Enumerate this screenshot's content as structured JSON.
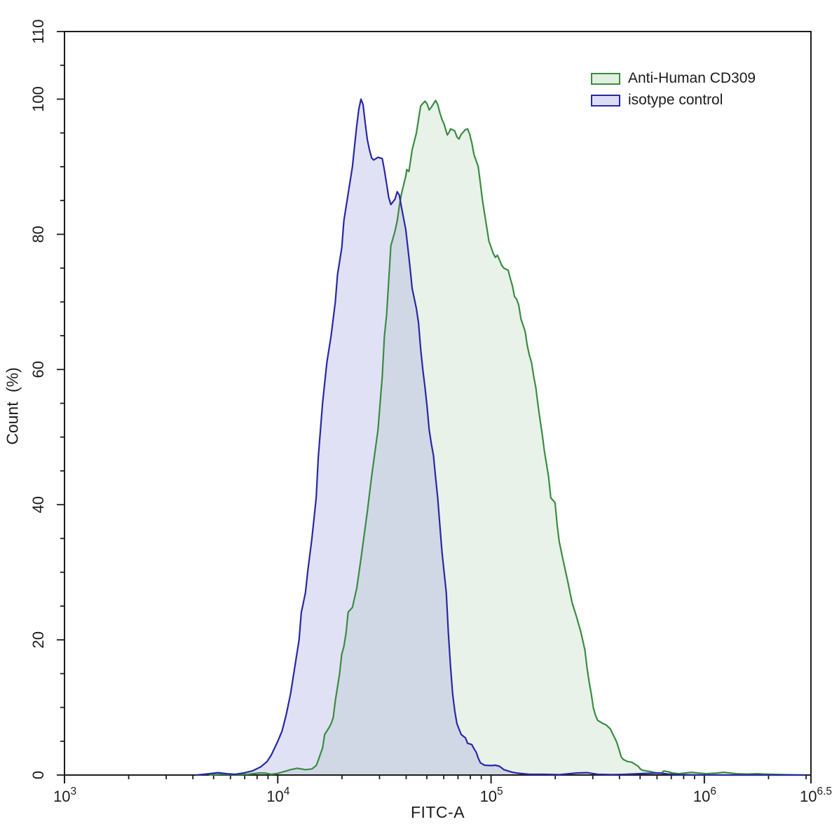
{
  "figure": {
    "xlabel": "FITC-A",
    "ylabel": "Count (%)",
    "legend": [
      {
        "label": "Anti-Human CD309"
      },
      {
        "label": "isotype control"
      }
    ]
  },
  "chart_data": {
    "type": "area",
    "subtype": "flow-cytometry-histogram",
    "title": "",
    "xlabel": "FITC-A",
    "ylabel": "Count (%)",
    "x_scale": "log10",
    "x_range_log10": [
      3,
      6.5
    ],
    "ylim": [
      0,
      110
    ],
    "grid": false,
    "legend_position": "top-right",
    "axis_color": "#1c1c1c",
    "text_color": "#1c1c1c",
    "x_tick_base": "10",
    "x_major_ticks": [
      {
        "log10": 3,
        "exponent": "3"
      },
      {
        "log10": 4,
        "exponent": "4"
      },
      {
        "log10": 5,
        "exponent": "5"
      },
      {
        "log10": 6,
        "exponent": "6"
      },
      {
        "log10": 6.5,
        "exponent": "6.5"
      }
    ],
    "y_major_ticks": [
      0,
      20,
      40,
      60,
      80,
      100,
      110
    ],
    "y_minor_step": 5,
    "series": [
      {
        "id": "anti-human-cd309",
        "name": "Anti-Human CD309",
        "color": "#3a8c42",
        "fill": "#7db980",
        "fill_opacity": 0.18,
        "swatch_fill": "#e0f0e0",
        "points": [
          [
            3.68,
            0
          ],
          [
            3.74,
            0.1
          ],
          [
            3.8,
            0.05
          ],
          [
            3.86,
            0.1
          ],
          [
            3.91,
            0.3
          ],
          [
            3.94,
            0.3
          ],
          [
            3.97,
            0.1
          ],
          [
            4.0,
            0.25
          ],
          [
            4.04,
            0.6
          ],
          [
            4.06,
            0.8
          ],
          [
            4.09,
            1.0
          ],
          [
            4.11,
            0.9
          ],
          [
            4.13,
            0.8
          ],
          [
            4.16,
            0.9
          ],
          [
            4.18,
            1.4
          ],
          [
            4.19,
            2.2
          ],
          [
            4.21,
            4.0
          ],
          [
            4.22,
            6.0
          ],
          [
            4.24,
            7.0
          ],
          [
            4.25,
            7.6
          ],
          [
            4.26,
            8.5
          ],
          [
            4.27,
            11
          ],
          [
            4.29,
            15
          ],
          [
            4.3,
            17.9
          ],
          [
            4.31,
            19
          ],
          [
            4.32,
            21
          ],
          [
            4.33,
            24.1
          ],
          [
            4.35,
            24.8
          ],
          [
            4.36,
            26.2
          ],
          [
            4.37,
            27.6
          ],
          [
            4.39,
            32
          ],
          [
            4.42,
            39
          ],
          [
            4.44,
            44.2
          ],
          [
            4.47,
            51.1
          ],
          [
            4.49,
            59
          ],
          [
            4.5,
            64.9
          ],
          [
            4.51,
            68
          ],
          [
            4.52,
            73
          ],
          [
            4.53,
            78.3
          ],
          [
            4.55,
            80.5
          ],
          [
            4.56,
            82
          ],
          [
            4.57,
            84.2
          ],
          [
            4.58,
            86
          ],
          [
            4.59,
            87.3
          ],
          [
            4.6,
            88.6
          ],
          [
            4.605,
            89.6
          ],
          [
            4.615,
            89.3
          ],
          [
            4.62,
            90.3
          ],
          [
            4.63,
            92.5
          ],
          [
            4.65,
            95
          ],
          [
            4.66,
            97
          ],
          [
            4.67,
            99
          ],
          [
            4.69,
            99.7
          ],
          [
            4.7,
            99.3
          ],
          [
            4.71,
            98.4
          ],
          [
            4.72,
            98.8
          ],
          [
            4.74,
            99.8
          ],
          [
            4.75,
            99.2
          ],
          [
            4.76,
            98
          ],
          [
            4.77,
            97
          ],
          [
            4.78,
            96.3
          ],
          [
            4.79,
            95.2
          ],
          [
            4.795,
            94.7
          ],
          [
            4.805,
            95.2
          ],
          [
            4.81,
            95.6
          ],
          [
            4.83,
            95.3
          ],
          [
            4.84,
            94.4
          ],
          [
            4.85,
            94.1
          ],
          [
            4.86,
            94.8
          ],
          [
            4.88,
            95.5
          ],
          [
            4.89,
            95.6
          ],
          [
            4.9,
            94.8
          ],
          [
            4.91,
            93.5
          ],
          [
            4.92,
            91.8
          ],
          [
            4.94,
            90
          ],
          [
            4.95,
            87.5
          ],
          [
            4.96,
            85
          ],
          [
            4.97,
            83
          ],
          [
            4.98,
            81
          ],
          [
            4.99,
            79
          ],
          [
            5.0,
            78.1
          ],
          [
            5.01,
            77.2
          ],
          [
            5.02,
            76.6
          ],
          [
            5.03,
            76.9
          ],
          [
            5.04,
            76.2
          ],
          [
            5.05,
            75.4
          ],
          [
            5.06,
            75.0
          ],
          [
            5.08,
            74.7
          ],
          [
            5.09,
            73.5
          ],
          [
            5.1,
            72.4
          ],
          [
            5.11,
            70.8
          ],
          [
            5.12,
            70.4
          ],
          [
            5.13,
            69.5
          ],
          [
            5.14,
            67.5
          ],
          [
            5.16,
            65.6
          ],
          [
            5.17,
            63.5
          ],
          [
            5.18,
            62.1
          ],
          [
            5.19,
            61.0
          ],
          [
            5.2,
            59
          ],
          [
            5.21,
            57.3
          ],
          [
            5.22,
            54.8
          ],
          [
            5.23,
            52.5
          ],
          [
            5.24,
            50.4
          ],
          [
            5.25,
            48.0
          ],
          [
            5.26,
            46
          ],
          [
            5.27,
            44.1
          ],
          [
            5.28,
            41.0
          ],
          [
            5.3,
            40.3
          ],
          [
            5.31,
            37
          ],
          [
            5.32,
            34.5
          ],
          [
            5.34,
            31.5
          ],
          [
            5.36,
            28.6
          ],
          [
            5.38,
            25.5
          ],
          [
            5.4,
            23.5
          ],
          [
            5.41,
            22.4
          ],
          [
            5.42,
            21.3
          ],
          [
            5.44,
            18.5
          ],
          [
            5.45,
            15.9
          ],
          [
            5.46,
            13.8
          ],
          [
            5.47,
            12.0
          ],
          [
            5.48,
            9.9
          ],
          [
            5.49,
            8.8
          ],
          [
            5.5,
            8.1
          ],
          [
            5.52,
            7.7
          ],
          [
            5.54,
            7.4
          ],
          [
            5.56,
            6.8
          ],
          [
            5.57,
            6.1
          ],
          [
            5.58,
            5.5
          ],
          [
            5.59,
            4.8
          ],
          [
            5.6,
            3.8
          ],
          [
            5.61,
            2.7
          ],
          [
            5.62,
            2.3
          ],
          [
            5.64,
            2.0
          ],
          [
            5.66,
            1.9
          ],
          [
            5.67,
            1.7
          ],
          [
            5.69,
            1.3
          ],
          [
            5.7,
            0.9
          ],
          [
            5.71,
            0.7
          ],
          [
            5.73,
            0.6
          ],
          [
            5.75,
            0.5
          ],
          [
            5.76,
            0.4
          ],
          [
            5.78,
            0.3
          ],
          [
            5.8,
            0.3
          ],
          [
            5.81,
            0.6
          ],
          [
            5.83,
            0.5
          ],
          [
            5.85,
            0.3
          ],
          [
            5.88,
            0.2
          ],
          [
            5.91,
            0.3
          ],
          [
            5.94,
            0.4
          ],
          [
            5.97,
            0.3
          ],
          [
            6.01,
            0.2
          ],
          [
            6.06,
            0.3
          ],
          [
            6.09,
            0.4
          ],
          [
            6.12,
            0.3
          ],
          [
            6.15,
            0.2
          ],
          [
            6.2,
            0.15
          ],
          [
            6.25,
            0.2
          ],
          [
            6.28,
            0.15
          ],
          [
            6.32,
            0.1
          ],
          [
            6.38,
            0.05
          ],
          [
            6.47,
            0
          ]
        ]
      },
      {
        "id": "isotype-control",
        "name": "isotype control",
        "color": "#2828a4",
        "fill": "#9a9ade",
        "fill_opacity": 0.3,
        "swatch_fill": "#dcddf4",
        "points": [
          [
            3.62,
            0
          ],
          [
            3.68,
            0.2
          ],
          [
            3.72,
            0.35
          ],
          [
            3.76,
            0.2
          ],
          [
            3.8,
            0.1
          ],
          [
            3.84,
            0.3
          ],
          [
            3.88,
            0.6
          ],
          [
            3.92,
            1.2
          ],
          [
            3.95,
            2.0
          ],
          [
            3.97,
            3.0
          ],
          [
            4.0,
            5.0
          ],
          [
            4.02,
            6.5
          ],
          [
            4.04,
            9.0
          ],
          [
            4.06,
            12
          ],
          [
            4.08,
            16
          ],
          [
            4.1,
            20
          ],
          [
            4.11,
            24
          ],
          [
            4.13,
            27
          ],
          [
            4.14,
            30
          ],
          [
            4.16,
            35
          ],
          [
            4.18,
            41
          ],
          [
            4.19,
            47
          ],
          [
            4.21,
            55
          ],
          [
            4.23,
            61
          ],
          [
            4.25,
            65
          ],
          [
            4.27,
            70
          ],
          [
            4.28,
            74
          ],
          [
            4.3,
            78
          ],
          [
            4.31,
            82
          ],
          [
            4.33,
            86
          ],
          [
            4.35,
            90
          ],
          [
            4.36,
            93
          ],
          [
            4.37,
            96
          ],
          [
            4.38,
            98.5
          ],
          [
            4.39,
            100
          ],
          [
            4.4,
            99.2
          ],
          [
            4.41,
            96.5
          ],
          [
            4.42,
            94
          ],
          [
            4.43,
            92.5
          ],
          [
            4.44,
            91.3
          ],
          [
            4.45,
            91.0
          ],
          [
            4.47,
            91.4
          ],
          [
            4.49,
            91.2
          ],
          [
            4.5,
            89.5
          ],
          [
            4.51,
            87.5
          ],
          [
            4.52,
            85.5
          ],
          [
            4.53,
            84.4
          ],
          [
            4.55,
            85.2
          ],
          [
            4.56,
            86.3
          ],
          [
            4.57,
            85.8
          ],
          [
            4.58,
            84.0
          ],
          [
            4.6,
            80.7
          ],
          [
            4.61,
            78
          ],
          [
            4.62,
            75.2
          ],
          [
            4.63,
            72
          ],
          [
            4.65,
            69
          ],
          [
            4.66,
            66.9
          ],
          [
            4.67,
            63
          ],
          [
            4.68,
            60
          ],
          [
            4.69,
            57.5
          ],
          [
            4.7,
            54.5
          ],
          [
            4.71,
            51.1
          ],
          [
            4.72,
            49
          ],
          [
            4.73,
            47.3
          ],
          [
            4.74,
            44
          ],
          [
            4.75,
            41
          ],
          [
            4.76,
            37
          ],
          [
            4.77,
            33
          ],
          [
            4.79,
            27
          ],
          [
            4.8,
            21
          ],
          [
            4.81,
            16
          ],
          [
            4.82,
            12
          ],
          [
            4.83,
            9.5
          ],
          [
            4.84,
            7.6
          ],
          [
            4.85,
            6.8
          ],
          [
            4.86,
            6.0
          ],
          [
            4.88,
            5.5
          ],
          [
            4.89,
            4.7
          ],
          [
            4.91,
            4.5
          ],
          [
            4.92,
            3.9
          ],
          [
            4.93,
            3.4
          ],
          [
            4.94,
            2.5
          ],
          [
            4.95,
            1.8
          ],
          [
            4.97,
            1.45
          ],
          [
            5.0,
            1.4
          ],
          [
            5.02,
            1.45
          ],
          [
            5.04,
            1.3
          ],
          [
            5.06,
            0.8
          ],
          [
            5.08,
            0.6
          ],
          [
            5.1,
            0.4
          ],
          [
            5.12,
            0.3
          ],
          [
            5.15,
            0.2
          ],
          [
            5.18,
            0.1
          ],
          [
            5.25,
            0.1
          ],
          [
            5.32,
            0.05
          ],
          [
            5.4,
            0.3
          ],
          [
            5.45,
            0.35
          ],
          [
            5.5,
            0.1
          ],
          [
            5.57,
            0.05
          ],
          [
            5.63,
            0.1
          ],
          [
            5.73,
            0.25
          ],
          [
            5.79,
            0.3
          ],
          [
            5.83,
            0.15
          ],
          [
            5.89,
            0.05
          ],
          [
            5.96,
            0.02
          ],
          [
            6.1,
            0
          ],
          [
            6.47,
            0
          ]
        ]
      }
    ]
  }
}
